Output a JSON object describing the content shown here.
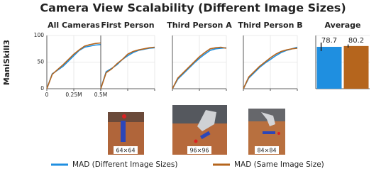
{
  "title": "Camera View Scalability (Different Image Sizes)",
  "row_label": "ManiSkill3",
  "legend": [
    {
      "name": "MAD (Different Image Sizes)",
      "color": "#1f8fe0"
    },
    {
      "name": "MAD (Same Image Size)",
      "color": "#b5651d"
    }
  ],
  "images": [
    {
      "label": "64×64"
    },
    {
      "label": "96×96"
    },
    {
      "label": "84×84"
    }
  ],
  "chart_data": [
    {
      "type": "line",
      "title": "All Cameras",
      "x": [
        0,
        50000,
        100000,
        150000,
        200000,
        250000,
        300000,
        350000,
        400000,
        450000,
        500000
      ],
      "series": [
        {
          "color": "#1f8fe0",
          "values": [
            0,
            28,
            35,
            42,
            52,
            62,
            72,
            78,
            80,
            82,
            83
          ]
        },
        {
          "color": "#b5651d",
          "values": [
            0,
            27,
            36,
            45,
            55,
            65,
            73,
            80,
            83,
            85,
            86
          ]
        }
      ],
      "xlim": [
        0,
        500000
      ],
      "ylim": [
        0,
        100
      ],
      "xticks": [
        0,
        {
          "value": 250000,
          "label": "0.25M"
        },
        {
          "value": 500000,
          "label": "0.5M"
        }
      ],
      "yticks": [
        0,
        50,
        100
      ],
      "show_xtick_labels": true,
      "show_ytick_labels": true,
      "grid": true
    },
    {
      "type": "line",
      "title": "First Person",
      "x": [
        0,
        50000,
        100000,
        150000,
        200000,
        250000,
        300000,
        350000,
        400000,
        450000,
        500000
      ],
      "series": [
        {
          "color": "#1f8fe0",
          "values": [
            0,
            32,
            38,
            45,
            55,
            62,
            68,
            72,
            74,
            76,
            77
          ]
        },
        {
          "color": "#b5651d",
          "values": [
            0,
            30,
            37,
            47,
            55,
            65,
            70,
            73,
            75,
            77,
            78
          ]
        }
      ],
      "xlim": [
        0,
        500000
      ],
      "ylim": [
        0,
        100
      ],
      "xticks": [
        0,
        250000,
        500000
      ],
      "yticks": [
        0,
        50,
        100
      ],
      "show_xtick_labels": false,
      "show_ytick_labels": false,
      "grid": true
    },
    {
      "type": "line",
      "title": "Third Person A",
      "x": [
        0,
        50000,
        100000,
        150000,
        200000,
        250000,
        300000,
        350000,
        400000,
        450000,
        500000
      ],
      "series": [
        {
          "color": "#1f8fe0",
          "values": [
            0,
            18,
            28,
            38,
            48,
            57,
            65,
            72,
            75,
            76,
            77
          ]
        },
        {
          "color": "#b5651d",
          "values": [
            0,
            20,
            30,
            40,
            50,
            60,
            68,
            75,
            77,
            78,
            76
          ]
        }
      ],
      "xlim": [
        0,
        500000
      ],
      "ylim": [
        0,
        100
      ],
      "xticks": [
        0,
        250000,
        500000
      ],
      "yticks": [
        0,
        50,
        100
      ],
      "show_xtick_labels": false,
      "show_ytick_labels": false,
      "grid": true
    },
    {
      "type": "line",
      "title": "Third Person B",
      "x": [
        0,
        50000,
        100000,
        150000,
        200000,
        250000,
        300000,
        350000,
        400000,
        450000,
        500000
      ],
      "series": [
        {
          "color": "#1f8fe0",
          "values": [
            0,
            20,
            30,
            40,
            48,
            55,
            62,
            68,
            72,
            75,
            78
          ]
        },
        {
          "color": "#b5651d",
          "values": [
            0,
            22,
            32,
            42,
            50,
            58,
            65,
            70,
            73,
            75,
            76
          ]
        }
      ],
      "xlim": [
        0,
        500000
      ],
      "ylim": [
        0,
        100
      ],
      "xticks": [
        0,
        250000,
        500000
      ],
      "yticks": [
        0,
        50,
        100
      ],
      "show_xtick_labels": false,
      "show_ytick_labels": false,
      "grid": true
    },
    {
      "type": "bar",
      "title": "Average",
      "values": [
        78.7,
        80.2
      ],
      "errors": [
        8,
        3
      ],
      "colors": [
        "#1f8fe0",
        "#b5651d"
      ],
      "ylim": [
        0,
        100
      ],
      "yticks": [
        0,
        50,
        100
      ],
      "show_ytick_labels": false,
      "grid": true
    }
  ]
}
